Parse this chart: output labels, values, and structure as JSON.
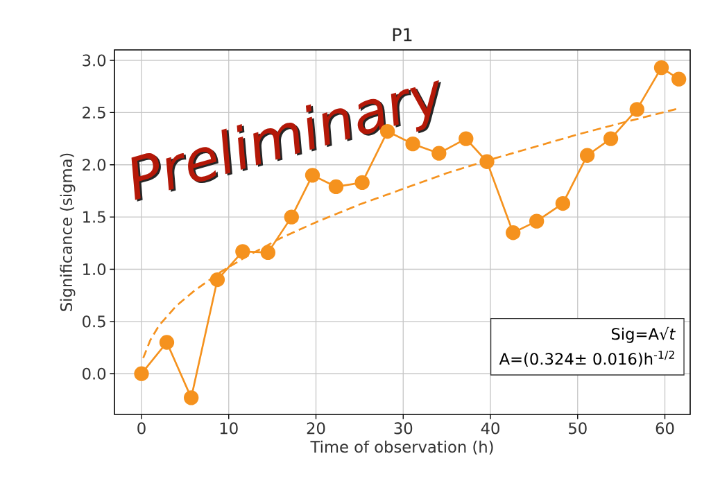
{
  "chart_data": {
    "type": "line",
    "title": "P1",
    "xlabel": "Time of observation (h)",
    "ylabel": "Significance (sigma)",
    "xlim": [
      -3.1,
      62.9
    ],
    "ylim": [
      -0.39,
      3.1
    ],
    "xticks": [
      0,
      10,
      20,
      30,
      40,
      50,
      60
    ],
    "yticks": [
      {
        "value": 0,
        "label": "0.0"
      },
      {
        "value": 0.5,
        "label": "0.5"
      },
      {
        "value": 1,
        "label": "1.0"
      },
      {
        "value": 1.5,
        "label": "1.5"
      },
      {
        "value": 2,
        "label": "2.0"
      },
      {
        "value": 2.5,
        "label": "2.5"
      },
      {
        "value": 3,
        "label": "3.0"
      }
    ],
    "grid": true,
    "series": [
      {
        "color": "#f5921e",
        "marker": "circle",
        "line_style": "solid",
        "x": [
          0,
          2.9,
          5.7,
          8.7,
          11.6,
          14.5,
          17.2,
          19.6,
          22.3,
          25.3,
          28.2,
          31.1,
          34.1,
          37.2,
          39.6,
          42.6,
          45.3,
          48.3,
          51.1,
          53.8,
          56.8,
          59.6,
          61.6
        ],
        "values": [
          0,
          0.3,
          -0.23,
          0.9,
          1.17,
          1.16,
          1.5,
          1.9,
          1.79,
          1.83,
          2.32,
          2.2,
          2.11,
          2.25,
          2.03,
          1.35,
          1.46,
          1.63,
          2.09,
          2.25,
          2.53,
          2.93,
          2.82
        ]
      },
      {
        "color": "#f5921e",
        "marker": "none",
        "line_style": "dashed",
        "x": [
          0.2,
          1,
          2,
          4,
          6,
          9,
          12,
          16,
          20,
          25,
          30,
          35,
          40,
          45,
          50,
          55,
          61.6
        ],
        "values": [
          0.15,
          0.32,
          0.46,
          0.65,
          0.79,
          0.97,
          1.12,
          1.3,
          1.45,
          1.62,
          1.77,
          1.92,
          2.05,
          2.17,
          2.29,
          2.4,
          2.54
        ]
      }
    ],
    "annotations": [
      "Preliminary",
      "Sig=A√*t*",
      "A=(0.324± 0.016)h$^{-1/2}$"
    ]
  }
}
